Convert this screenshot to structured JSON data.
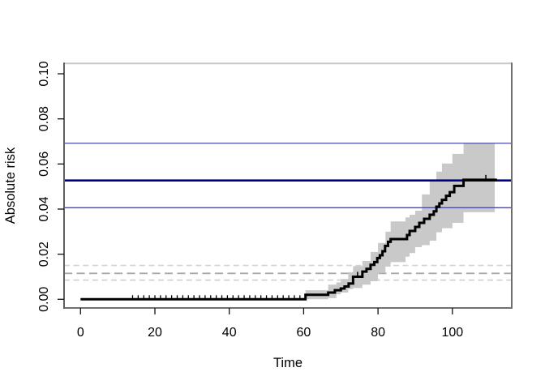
{
  "chart_data": {
    "type": "line",
    "subtype": "step-function-with-confidence-band",
    "title": "",
    "xlabel": "Time",
    "ylabel": "Absolute risk",
    "xlim": [
      0,
      116
    ],
    "ylim": [
      0,
      0.1
    ],
    "grid": false,
    "legend_position": "none",
    "x_ticks": [
      {
        "v": 0,
        "label": "0"
      },
      {
        "v": 20,
        "label": "20"
      },
      {
        "v": 40,
        "label": "40"
      },
      {
        "v": 60,
        "label": "60"
      },
      {
        "v": 80,
        "label": "80"
      },
      {
        "v": 100,
        "label": "100"
      }
    ],
    "y_ticks": [
      {
        "v": 0.0,
        "label": "0.00"
      },
      {
        "v": 0.02,
        "label": "0.02"
      },
      {
        "v": 0.04,
        "label": "0.04"
      },
      {
        "v": 0.06,
        "label": "0.06"
      },
      {
        "v": 0.08,
        "label": "0.08"
      },
      {
        "v": 0.1,
        "label": "0.10"
      }
    ],
    "curve": {
      "name": "predicted-absolute-risk-step-curve",
      "color": "#000000",
      "width": 3,
      "x": [
        0,
        60.5,
        66.6,
        68.4,
        70,
        71,
        72.1,
        73.3,
        75.8,
        76.9,
        78,
        79,
        79.8,
        80.5,
        81.2,
        81.9,
        82.7,
        83.4,
        87.8,
        88.5,
        90,
        91.1,
        92.4,
        93.9,
        95.0,
        95.7,
        96.5,
        97.2,
        98.3,
        99.3,
        100.5,
        103,
        112
      ],
      "y": [
        0,
        0.002,
        0.003,
        0.004,
        0.0048,
        0.0057,
        0.007,
        0.01,
        0.0123,
        0.0135,
        0.0153,
        0.0165,
        0.0183,
        0.0195,
        0.0213,
        0.0237,
        0.0255,
        0.0267,
        0.0285,
        0.0303,
        0.0321,
        0.0339,
        0.0357,
        0.0375,
        0.039,
        0.0411,
        0.0425,
        0.0441,
        0.0459,
        0.0475,
        0.0503,
        0.053,
        0.053
      ]
    },
    "band": {
      "name": "pointwise-confidence-band",
      "color": "#c9c9c9",
      "x": [
        60.5,
        66.6,
        68.8,
        70,
        72,
        73.3,
        75.8,
        78,
        80,
        82,
        83.4,
        87.4,
        88.5,
        90,
        91.8,
        93.9,
        95.7,
        97.2,
        100,
        103,
        111.4
      ],
      "upper": [
        0.004,
        0.0065,
        0.0075,
        0.009,
        0.012,
        0.0147,
        0.017,
        0.021,
        0.025,
        0.03,
        0.0345,
        0.0363,
        0.0375,
        0.0393,
        0.0465,
        0.0525,
        0.0566,
        0.0602,
        0.0645,
        0.069,
        0.069
      ],
      "lower": [
        0.0,
        0.0005,
        0.0022,
        0.003,
        0.0045,
        0.005,
        0.0065,
        0.008,
        0.0117,
        0.0145,
        0.0165,
        0.0189,
        0.0205,
        0.0231,
        0.024,
        0.026,
        0.0297,
        0.0315,
        0.0339,
        0.0386,
        0.0386
      ]
    },
    "reference_lines": [
      {
        "name": "reference-upper-limit-dashed",
        "y": 0.015,
        "color": "#d2d2d2",
        "width": 1.7,
        "dash": "7,4.6",
        "layer": "back"
      },
      {
        "name": "reference-risk-dashed",
        "y": 0.0115,
        "color": "#a9a9a9",
        "width": 1.9,
        "dash": "10,5.5",
        "layer": "back"
      },
      {
        "name": "reference-lower-limit-dashed",
        "y": 0.0085,
        "color": "#d2d2d2",
        "width": 1.7,
        "dash": "7,4.6",
        "layer": "back"
      },
      {
        "name": "risk-upper-confidence-limit",
        "y": 0.0692,
        "color": "#4a4aa0",
        "width": 1.3,
        "dash": "",
        "layer": "front"
      },
      {
        "name": "risk-estimate-at-horizon",
        "y": 0.0527,
        "color": "#00008b",
        "width": 2.6,
        "dash": "",
        "layer": "front"
      },
      {
        "name": "risk-lower-confidence-limit",
        "y": 0.0406,
        "color": "#4a4aa0",
        "width": 1.3,
        "dash": "",
        "layer": "front"
      }
    ],
    "censor_marks": {
      "baseline_risk": 0.0,
      "baseline_times": [
        14,
        15.5,
        17,
        18.5,
        20,
        21.5,
        23,
        24.5,
        26,
        27.5,
        29,
        30.5,
        32,
        33.5,
        35,
        36.5,
        38,
        39.5,
        41,
        42.5,
        44,
        45.5,
        47,
        48.5,
        50,
        51.5,
        53,
        54.5,
        56,
        57.5,
        59
      ],
      "on_curve": [
        {
          "t": 74.5,
          "risk": 0.01
        },
        {
          "t": 109,
          "risk": 0.053
        }
      ]
    },
    "style": {
      "box_top_color": "#c8c8c8",
      "box_right_color": "#6e6e6e",
      "box_bottom_color": "#707070",
      "box_left_color": "#5f5f5f",
      "tick_color": "#111111",
      "text_color": "#000000"
    }
  }
}
